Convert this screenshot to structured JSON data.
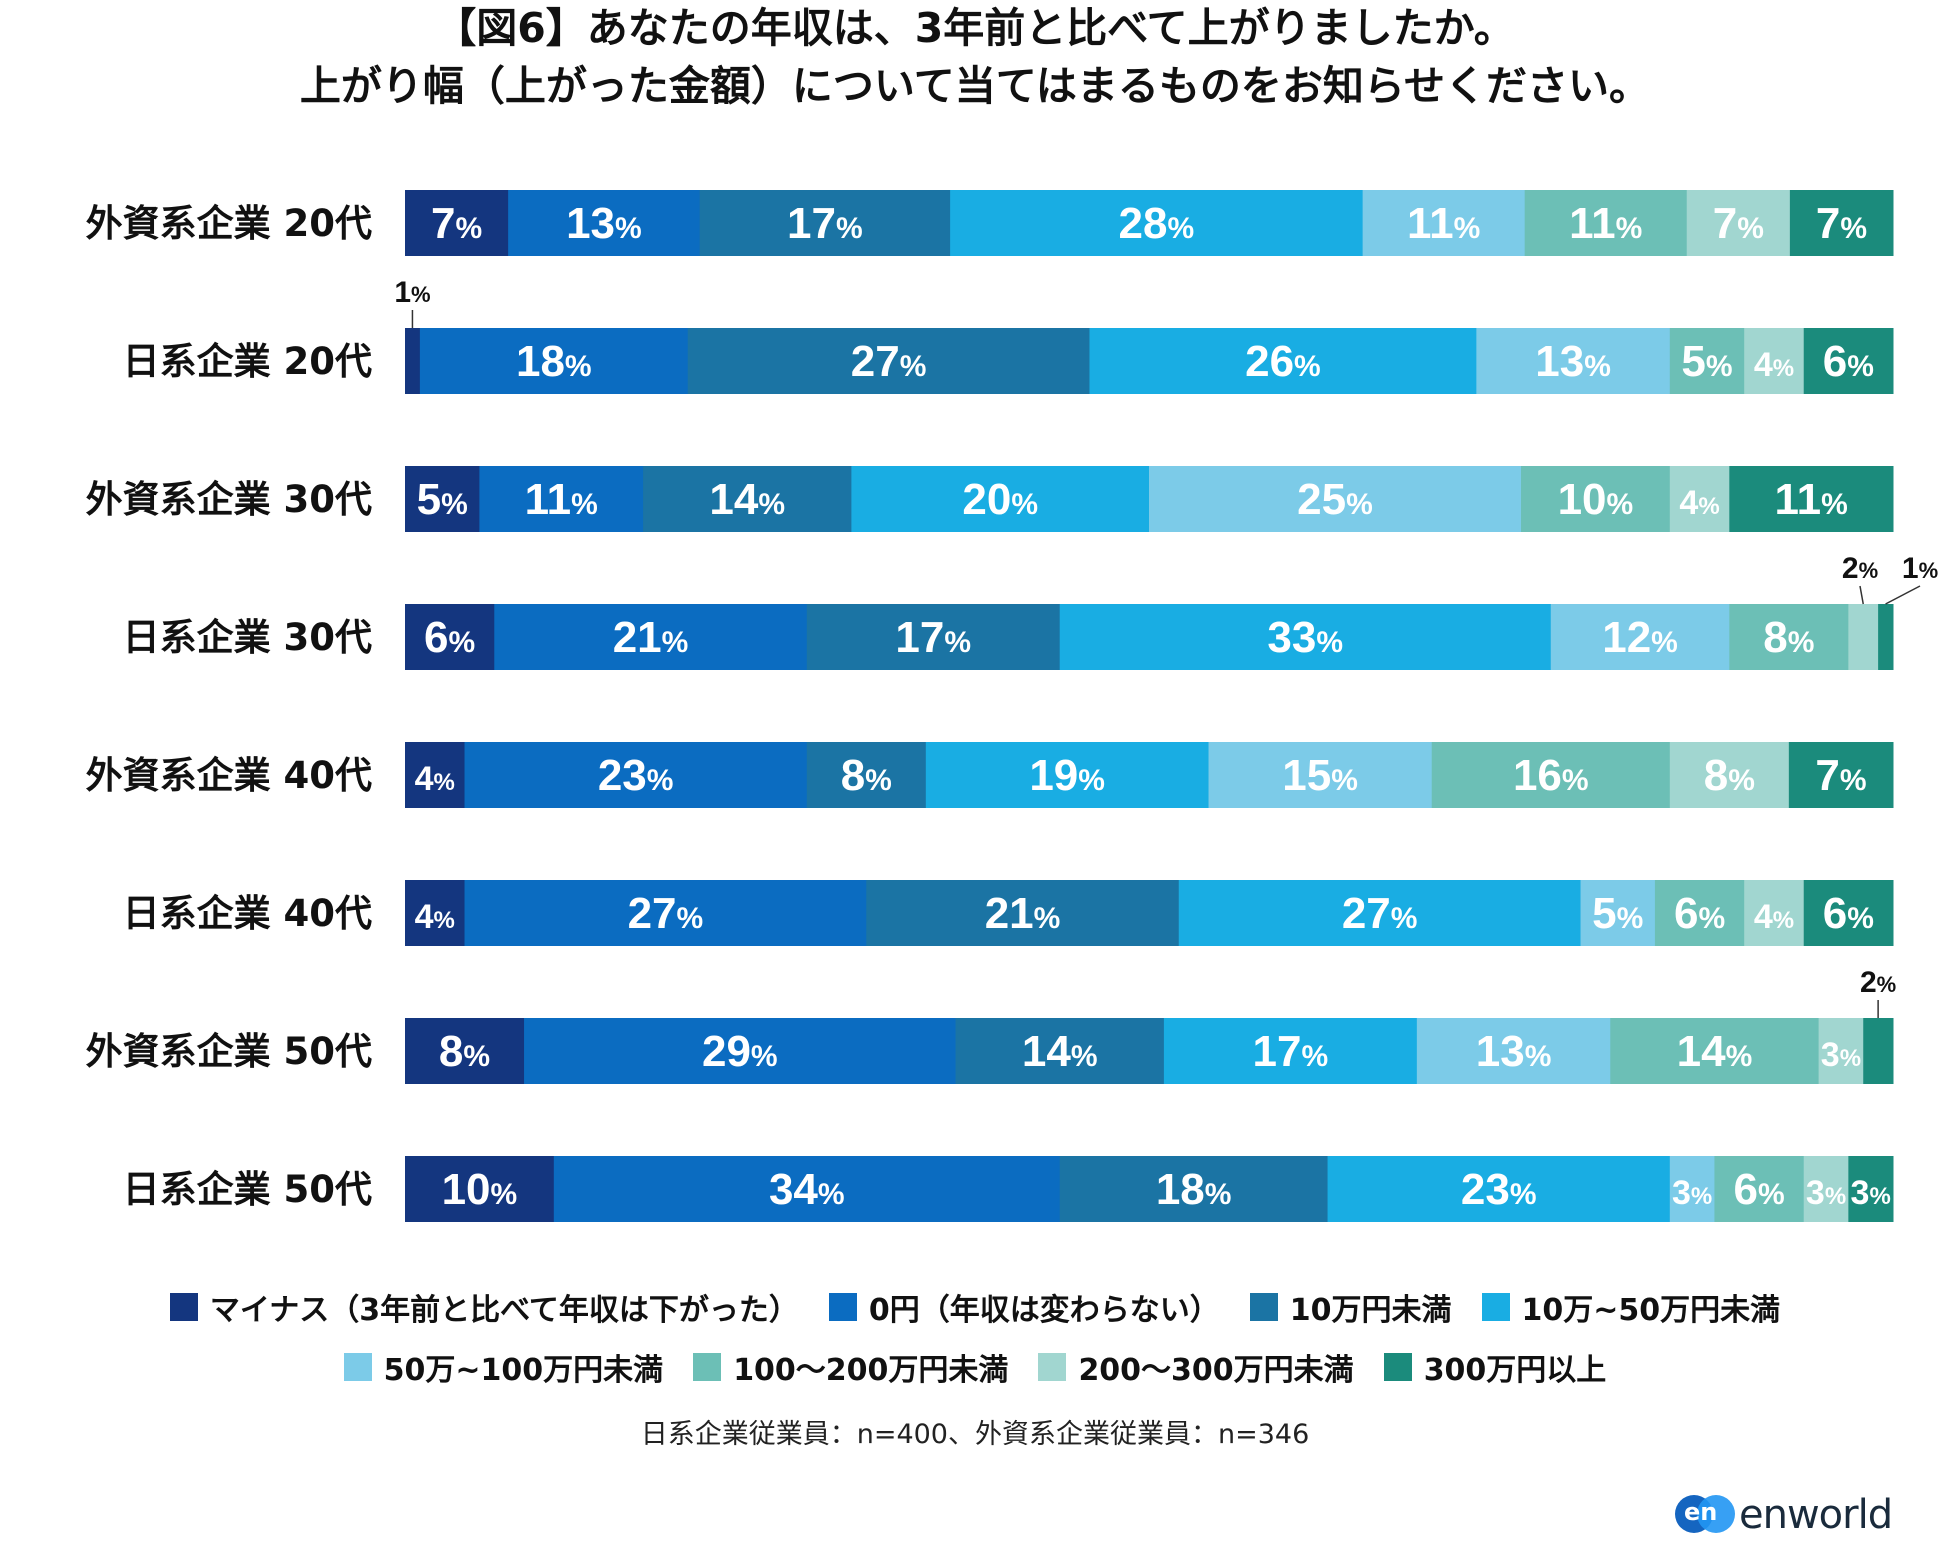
{
  "title_line1": "【図6】あなたの年収は、3年前と比べて上がりましたか。",
  "title_line2": "上がり幅（上がった金額）について当てはまるものをお知らせください。",
  "note": "日系企業従業員：n=400、外資系企業従業員：n=346",
  "logo": {
    "mark": "en",
    "text": "enworld"
  },
  "percent_sign": "%",
  "colors": [
    "#14367f",
    "#0b6cc1",
    "#1b74a4",
    "#19ade3",
    "#7ccbe8",
    "#6cbfb6",
    "#a1d6d0",
    "#1b8b7c"
  ],
  "chart_data": {
    "type": "bar",
    "orientation": "horizontal",
    "stacked": true,
    "xlim": [
      0,
      100
    ],
    "unit": "%",
    "categories": [
      "外資系企業 20代",
      "日系企業 20代",
      "外資系企業 30代",
      "日系企業 30代",
      "外資系企業 40代",
      "日系企業 40代",
      "外資系企業 50代",
      "日系企業 50代"
    ],
    "series": [
      {
        "name": "マイナス（3年前と比べて年収は下がった）",
        "values": [
          7,
          1,
          5,
          6,
          4,
          4,
          8,
          10
        ]
      },
      {
        "name": "0円（年収は変わらない）",
        "values": [
          13,
          18,
          11,
          21,
          23,
          27,
          29,
          34
        ]
      },
      {
        "name": "10万円未満",
        "values": [
          17,
          27,
          14,
          17,
          8,
          21,
          14,
          18
        ]
      },
      {
        "name": "10万~50万円未満",
        "values": [
          28,
          26,
          20,
          33,
          19,
          27,
          17,
          23
        ]
      },
      {
        "name": "50万~100万円未満",
        "values": [
          11,
          13,
          25,
          12,
          15,
          5,
          13,
          3
        ]
      },
      {
        "name": "100～200万円未満",
        "values": [
          11,
          5,
          10,
          8,
          16,
          6,
          14,
          6
        ]
      },
      {
        "name": "200～300万円未満",
        "values": [
          7,
          4,
          4,
          2,
          8,
          4,
          3,
          3
        ]
      },
      {
        "name": "300万円以上",
        "values": [
          7,
          6,
          11,
          1,
          7,
          6,
          2,
          3
        ]
      }
    ]
  }
}
